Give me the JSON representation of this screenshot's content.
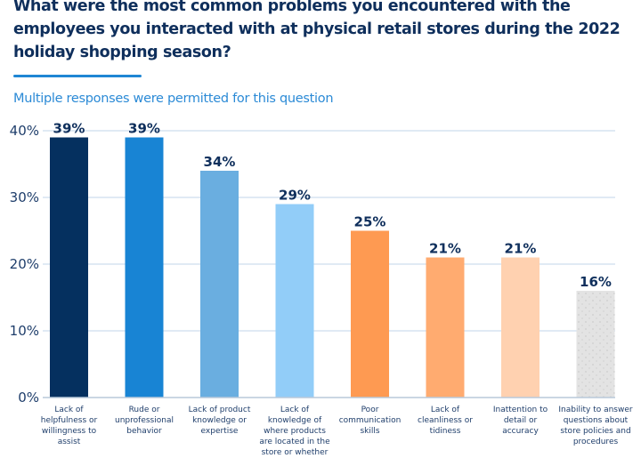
{
  "chart_data": {
    "type": "bar",
    "title": "What were the most common problems you encountered with the employees you interacted with at physical retail stores during the 2022 holiday shopping season?",
    "subtitle": "Multiple responses were permitted for this question",
    "xlabel": "",
    "ylabel": "",
    "ylim": [
      0,
      40
    ],
    "yticks": [
      0,
      10,
      20,
      30,
      40
    ],
    "ytick_labels": [
      "0%",
      "10%",
      "20%",
      "30%",
      "40%"
    ],
    "grid": true,
    "legend": "none",
    "categories": [
      "Lack of helpfulness or willingness to assist",
      "Rude or unprofessional behavior",
      "Lack of product knowledge or expertise",
      "Lack of knowledge of where products are located in the store or whether",
      "Poor communication skills",
      "Lack of cleanliness or tidiness",
      "Inattention to detail or accuracy",
      "Inability to answer questions about store policies and procedures"
    ],
    "category_lines": [
      [
        "Lack of",
        "helpfulness or",
        "willingness to",
        "assist"
      ],
      [
        "Rude or",
        "unprofessional",
        "behavior"
      ],
      [
        "Lack of product",
        "knowledge or",
        "expertise"
      ],
      [
        "Lack of",
        "knowledge of",
        "where products",
        "are located in the",
        "store or whether"
      ],
      [
        "Poor",
        "communication",
        "skills"
      ],
      [
        "Lack of",
        "cleanliness or",
        "tidiness"
      ],
      [
        "Inattention to",
        "detail or",
        "accuracy"
      ],
      [
        "Inability to answer",
        "questions about",
        "store policies and",
        "procedures"
      ]
    ],
    "values": [
      39,
      39,
      34,
      29,
      25,
      21,
      21,
      16
    ],
    "value_labels": [
      "39%",
      "39%",
      "34%",
      "29%",
      "25%",
      "21%",
      "21%",
      "16%"
    ],
    "colors": [
      "#05305f",
      "#1884d4",
      "#6aaee0",
      "#92cdf8",
      "#fe9a52",
      "#ffab70",
      "#ffd1b0",
      "#e3e3e3"
    ]
  }
}
